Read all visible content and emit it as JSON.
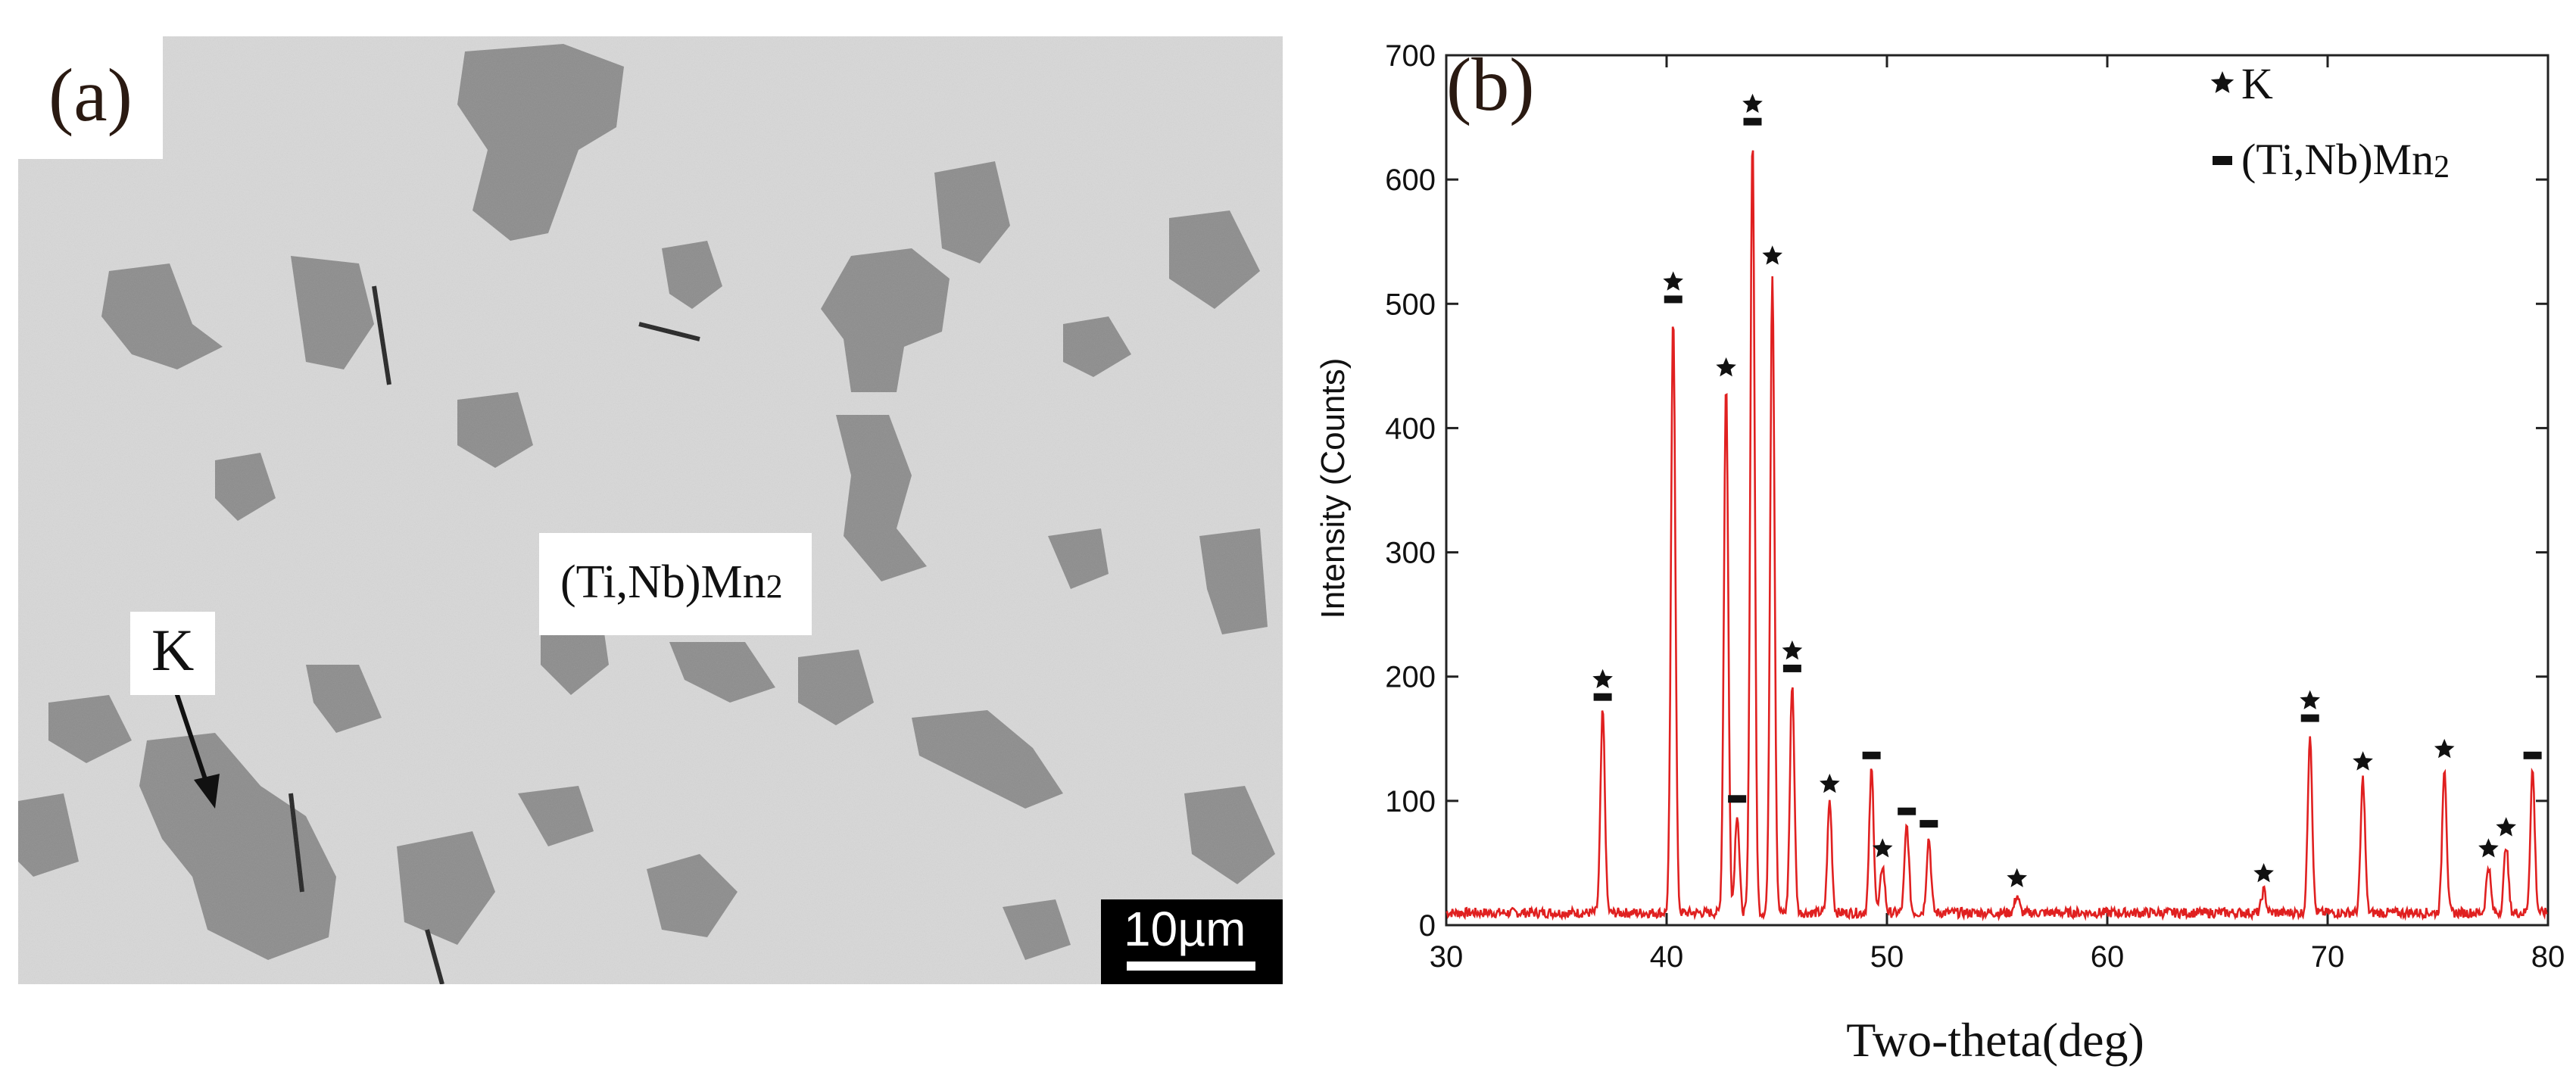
{
  "panel_a": {
    "label": "(a)",
    "callouts": {
      "k": "K",
      "phase_main": "(Ti,Nb)Mn",
      "phase_sub": "2"
    },
    "scale_bar": "10µm",
    "colors": {
      "matrix": "#d8d8d8",
      "phase_k": "#8c8c8c",
      "arrow": "#111111"
    }
  },
  "chart_data": {
    "type": "line",
    "panel_label": "(b)",
    "xlabel": "Two-theta(deg)",
    "ylabel": "Intensity (Counts)",
    "xlim": [
      30,
      80
    ],
    "ylim": [
      0,
      700
    ],
    "x_ticks": [
      30,
      40,
      50,
      60,
      70,
      80
    ],
    "y_ticks": [
      0,
      100,
      200,
      300,
      400,
      500,
      600,
      700
    ],
    "baseline": 10,
    "series": [
      {
        "color": "#e02020",
        "peaks": [
          {
            "x": 37.1,
            "y": 172
          },
          {
            "x": 40.3,
            "y": 492
          },
          {
            "x": 42.7,
            "y": 435
          },
          {
            "x": 43.2,
            "y": 90
          },
          {
            "x": 43.9,
            "y": 635
          },
          {
            "x": 44.8,
            "y": 525
          },
          {
            "x": 45.7,
            "y": 195
          },
          {
            "x": 47.4,
            "y": 100
          },
          {
            "x": 49.3,
            "y": 125
          },
          {
            "x": 49.8,
            "y": 48
          },
          {
            "x": 50.9,
            "y": 80
          },
          {
            "x": 51.9,
            "y": 70
          },
          {
            "x": 55.9,
            "y": 24
          },
          {
            "x": 67.1,
            "y": 28
          },
          {
            "x": 69.2,
            "y": 155
          },
          {
            "x": 71.6,
            "y": 118
          },
          {
            "x": 75.3,
            "y": 128
          },
          {
            "x": 77.3,
            "y": 48
          },
          {
            "x": 78.1,
            "y": 65
          },
          {
            "x": 79.3,
            "y": 125
          }
        ]
      }
    ],
    "markers": [
      {
        "x": 37.1,
        "symbols": [
          "star",
          "dash"
        ]
      },
      {
        "x": 40.3,
        "symbols": [
          "star",
          "dash"
        ]
      },
      {
        "x": 42.7,
        "symbols": [
          "star"
        ]
      },
      {
        "x": 43.2,
        "symbols": [
          "dash"
        ]
      },
      {
        "x": 43.9,
        "symbols": [
          "star",
          "dash"
        ]
      },
      {
        "x": 44.8,
        "symbols": [
          "star"
        ]
      },
      {
        "x": 45.7,
        "symbols": [
          "star",
          "dash"
        ]
      },
      {
        "x": 47.4,
        "symbols": [
          "star"
        ]
      },
      {
        "x": 49.3,
        "symbols": [
          "dash"
        ]
      },
      {
        "x": 49.8,
        "symbols": [
          "star"
        ]
      },
      {
        "x": 50.9,
        "symbols": [
          "dash"
        ]
      },
      {
        "x": 51.9,
        "symbols": [
          "dash"
        ]
      },
      {
        "x": 55.9,
        "symbols": [
          "star"
        ]
      },
      {
        "x": 67.1,
        "symbols": [
          "star"
        ]
      },
      {
        "x": 69.2,
        "symbols": [
          "star",
          "dash"
        ]
      },
      {
        "x": 71.6,
        "symbols": [
          "star"
        ]
      },
      {
        "x": 75.3,
        "symbols": [
          "star"
        ]
      },
      {
        "x": 77.3,
        "symbols": [
          "star"
        ]
      },
      {
        "x": 78.1,
        "symbols": [
          "star"
        ]
      },
      {
        "x": 79.3,
        "symbols": [
          "dash"
        ]
      }
    ],
    "legend": {
      "position": "top-right",
      "items": [
        {
          "symbol": "star",
          "label": "K",
          "sub": ""
        },
        {
          "symbol": "dash",
          "label": "(Ti,Nb)Mn",
          "sub": "2"
        }
      ]
    },
    "grid": false
  }
}
